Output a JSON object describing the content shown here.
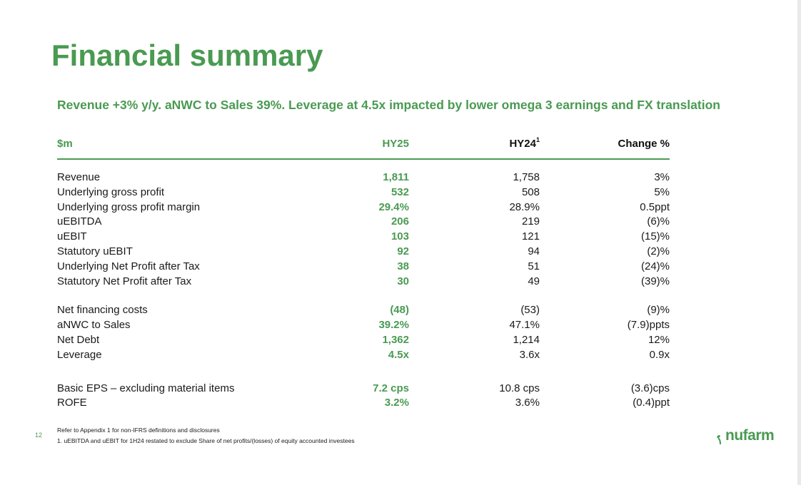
{
  "slide": {
    "title": "Financial summary",
    "subtitle": "Revenue +3% y/y. aNWC to Sales 39%. Leverage at 4.5x impacted by lower omega 3 earnings and FX translation",
    "page_number": "12"
  },
  "table": {
    "headers": {
      "label": "$m",
      "hy25": "HY25",
      "hy24": "HY24",
      "hy24_sup": "1",
      "change": "Change %"
    },
    "group1": [
      {
        "label": "Revenue",
        "hy25": "1,811",
        "hy24": "1,758",
        "change": "3%"
      },
      {
        "label": "Underlying gross profit",
        "hy25": "532",
        "hy24": "508",
        "change": "5%"
      },
      {
        "label": "Underlying gross profit margin",
        "hy25": "29.4%",
        "hy24": "28.9%",
        "change": "0.5ppt"
      },
      {
        "label": "uEBITDA",
        "hy25": "206",
        "hy24": "219",
        "change": "(6)%"
      },
      {
        "label": "uEBIT",
        "hy25": "103",
        "hy24": "121",
        "change": "(15)%"
      },
      {
        "label": "Statutory uEBIT",
        "hy25": "92",
        "hy24": "94",
        "change": "(2)%"
      },
      {
        "label": "Underlying Net Profit after Tax",
        "hy25": "38",
        "hy24": "51",
        "change": "(24)%"
      },
      {
        "label": "Statutory Net Profit after Tax",
        "hy25": "30",
        "hy24": "49",
        "change": "(39)%"
      }
    ],
    "group2": [
      {
        "label": "Net financing costs",
        "hy25": "(48)",
        "hy24": "(53)",
        "change": "(9)%"
      },
      {
        "label": "aNWC to Sales",
        "hy25": "39.2%",
        "hy24": "47.1%",
        "change": "(7.9)ppts"
      },
      {
        "label": "Net Debt",
        "hy25": "1,362",
        "hy24": "1,214",
        "change": "12%"
      },
      {
        "label": "Leverage",
        "hy25": "4.5x",
        "hy24": "3.6x",
        "change": "0.9x"
      }
    ],
    "group3": [
      {
        "label": "Basic EPS – excluding material items",
        "hy25": "7.2 cps",
        "hy24": "10.8 cps",
        "change": "(3.6)cps"
      },
      {
        "label": "ROFE",
        "hy25": "3.2%",
        "hy24": "3.6%",
        "change": "(0.4)ppt"
      }
    ]
  },
  "footnotes": {
    "line1": "Refer to Appendix 1 for non-IFRS definitions and disclosures",
    "line2": "1. uEBITDA and uEBIT for 1H24 restated to exclude Share of net profits/(losses) of equity accounted investees"
  },
  "logo": {
    "text": "nufarm",
    "icon": "sprout-icon"
  },
  "colors": {
    "accent": "#4a9a52",
    "text": "#1a1a1a"
  }
}
